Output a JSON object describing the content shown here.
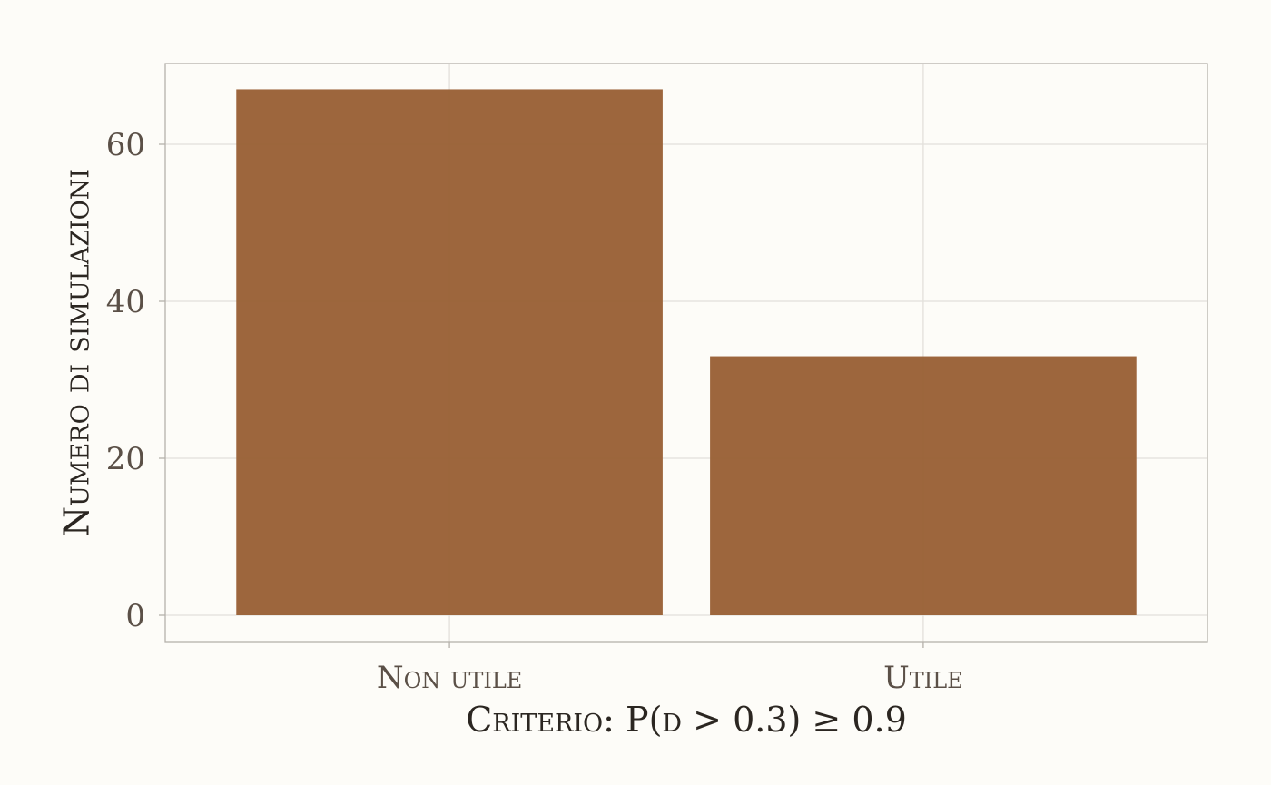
{
  "chart_data": {
    "type": "bar",
    "categories": [
      "Non utile",
      "Utile"
    ],
    "values": [
      67,
      33
    ],
    "xlabel": "Criterio: P(d > 0.3) ≥ 0.9",
    "ylabel": "Numero di simulazioni",
    "ylim": [
      0,
      70
    ],
    "yticks": [
      0,
      20,
      40,
      60
    ],
    "grid": true,
    "legend": "none",
    "colors": {
      "bar": "#9a6137",
      "background": "#fdfcf8",
      "grid": "#e3e0db",
      "axis": "#b5b1ab",
      "tick_text": "#5b5047",
      "title_text": "#2b2621"
    }
  }
}
